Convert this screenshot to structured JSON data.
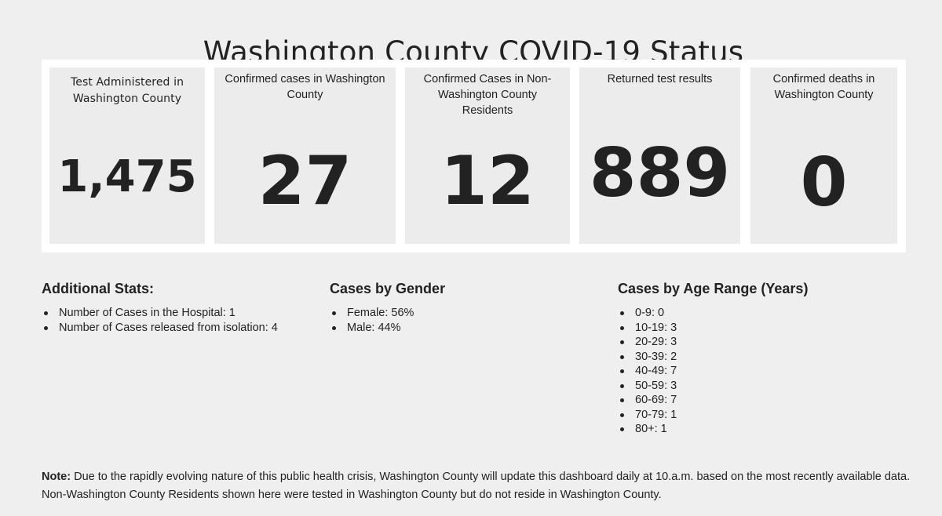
{
  "page": {
    "title": "Washington County COVID-19 Status"
  },
  "stat_cards": [
    {
      "label": "Test Administered in Washington County",
      "value": "1,475"
    },
    {
      "label": "Confirmed cases in Washington County",
      "value": "27"
    },
    {
      "label": "Confirmed Cases in Non-Washington County Residents",
      "value": "12"
    },
    {
      "label": "Returned test results",
      "value": "889"
    },
    {
      "label": "Confirmed deaths in Washington County",
      "value": "0"
    }
  ],
  "additional_stats": {
    "heading": "Additional Stats:",
    "items": [
      "Number of Cases in the Hospital: 1",
      "Number of Cases released from isolation: 4"
    ]
  },
  "gender": {
    "heading": "Cases by Gender",
    "items": [
      "Female: 56%",
      "Male: 44%"
    ]
  },
  "age": {
    "heading": "Cases by Age Range (Years)",
    "items": [
      "0-9: 0",
      "10-19: 3",
      "20-29: 3",
      "30-39: 2",
      "40-49: 7",
      "50-59: 3",
      "60-69: 7",
      "70-79: 1",
      "80+: 1"
    ]
  },
  "note": {
    "label": "Note:",
    "text": "Due to the rapidly evolving nature of this public health crisis, Washington County will update this dashboard daily at 10.a.m. based on the most recently available data. Non-Washington County Residents shown here were tested in Washington County but do not reside in Washington County."
  },
  "colors": {
    "background": "#efefef",
    "panel": "#ffffff",
    "card": "#ececec",
    "text": "#222222"
  }
}
